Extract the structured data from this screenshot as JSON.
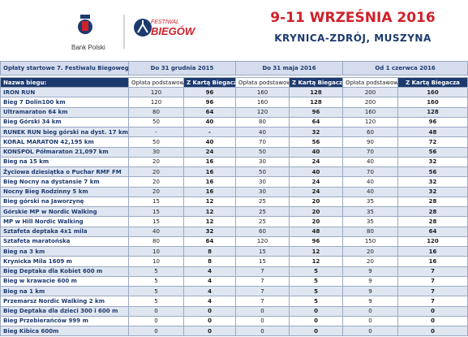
{
  "header": {
    "bank": "Bank Polski",
    "festival_top": "FESTIWAL",
    "festival_bottom": "BIEGÓW",
    "date": "9-11 WRZEŚNIA 2016",
    "location": "KRYNICA-ZDRÓJ, MUSZYNA"
  },
  "table": {
    "caption": "Opłaty startowe 7. Festiwalu Biegowego",
    "periods": [
      "Do 31 grudnia 2015",
      "Do 31 maja 2016",
      "Od 1 czerwca 2016"
    ],
    "name_header": "Nazwa biegu:",
    "columns": [
      "Opłata podstawowa",
      "Z Kartą Biegacza",
      "Opłata podstawowa",
      "Z Kartą Biegacza",
      "Opłata podstawowa",
      "Z Kartą Biegacza"
    ],
    "rows": [
      [
        "IRON RUN",
        120,
        96,
        160,
        128,
        200,
        160
      ],
      [
        "Bieg 7 Dolin100 km",
        120,
        96,
        160,
        128,
        200,
        160
      ],
      [
        "Ultramaraton 64 km",
        80,
        64,
        120,
        96,
        160,
        128
      ],
      [
        "Bieg Górski 34 km",
        50,
        40,
        80,
        64,
        120,
        96
      ],
      [
        "RUNEK RUN bieg górski na dyst. 17 km",
        "-",
        "-",
        40,
        32,
        60,
        48
      ],
      [
        "KORAL MARATON 42,195 km",
        50,
        40,
        70,
        56,
        90,
        72
      ],
      [
        "KONSPOL Półmaraton 21,097 km",
        30,
        24,
        50,
        40,
        70,
        56
      ],
      [
        "Bieg na 15 km",
        20,
        16,
        30,
        24,
        40,
        32
      ],
      [
        "Życiowa dziesiątka o Puchar RMF FM",
        20,
        16,
        50,
        40,
        70,
        56
      ],
      [
        "Bieg Nocny na dystansie 7 km",
        20,
        16,
        30,
        24,
        40,
        32
      ],
      [
        "Nocny Bieg Rodzinny 5 km",
        20,
        16,
        30,
        24,
        40,
        32
      ],
      [
        "Bieg górski na Jaworzynę",
        15,
        12,
        25,
        20,
        35,
        28
      ],
      [
        "Górskie MP w Nordic Walking",
        15,
        12,
        25,
        20,
        35,
        28
      ],
      [
        "MP w Hill Nordic Walking",
        15,
        12,
        25,
        20,
        35,
        28
      ],
      [
        "Sztafeta deptaka 4x1 mila",
        40,
        32,
        60,
        48,
        80,
        64
      ],
      [
        "Sztafeta maratońska",
        80,
        64,
        120,
        96,
        150,
        120
      ],
      [
        "Bieg na 3 km",
        10,
        8,
        15,
        12,
        20,
        16
      ],
      [
        "Krynicka Mila  1609 m",
        10,
        8,
        15,
        12,
        20,
        16
      ],
      [
        "Bieg Deptaka dla Kobiet 600 m",
        5,
        4,
        7,
        5,
        9,
        7
      ],
      [
        "Bieg w krawacie 600 m",
        5,
        4,
        7,
        5,
        9,
        7
      ],
      [
        "Bieg na 1 km",
        5,
        4,
        7,
        5,
        9,
        7
      ],
      [
        "Przemarsz Nordic Walking 2 km",
        5,
        4,
        7,
        5,
        9,
        7
      ],
      [
        "Bieg Deptaka dla dzieci 300 i 600 m",
        0,
        0,
        0,
        0,
        0,
        0
      ],
      [
        "Bieg Przebierańców 999 m",
        0,
        0,
        0,
        0,
        0,
        0
      ],
      [
        "Bieg Kibica 600m",
        0,
        0,
        0,
        0,
        0,
        0
      ]
    ]
  }
}
